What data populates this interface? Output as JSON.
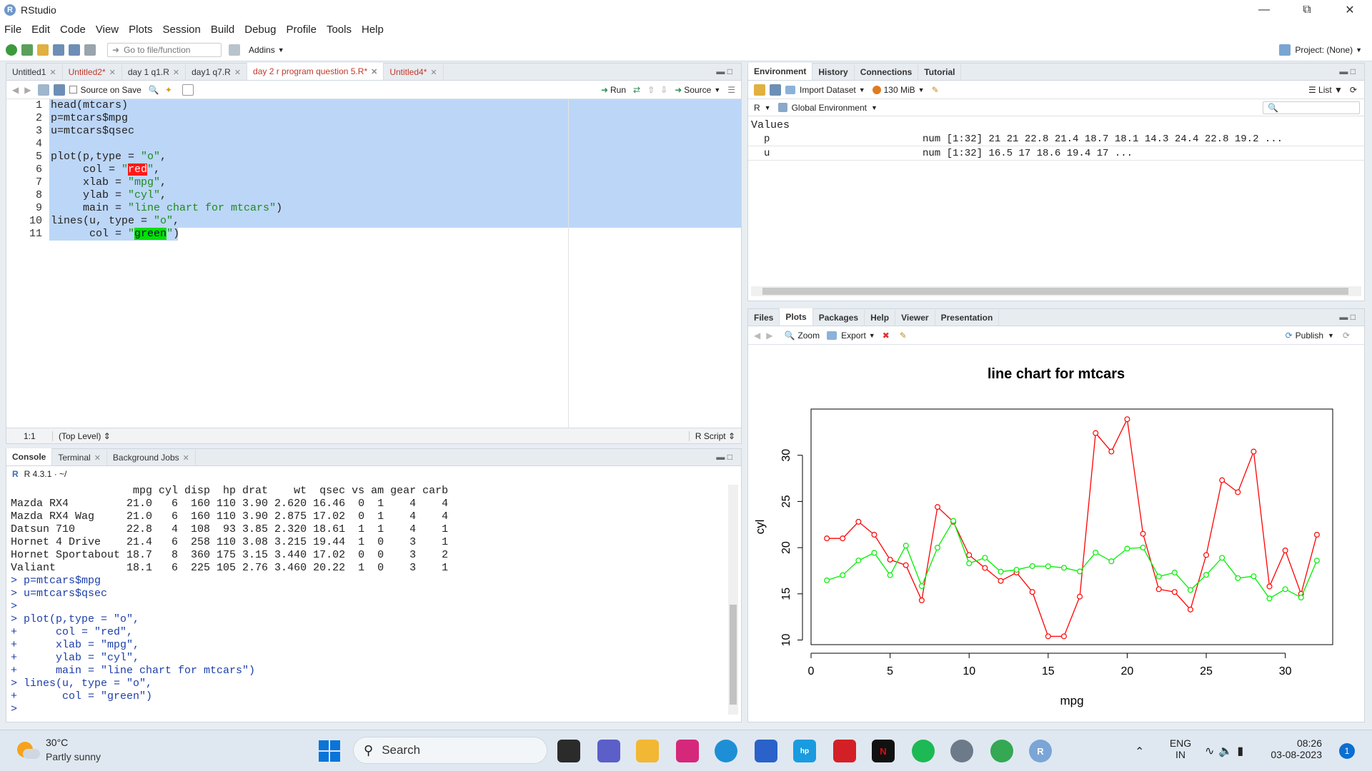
{
  "app": {
    "title": "RStudio"
  },
  "menu": [
    "File",
    "Edit",
    "Code",
    "View",
    "Plots",
    "Session",
    "Build",
    "Debug",
    "Profile",
    "Tools",
    "Help"
  ],
  "toolbar": {
    "goto_placeholder": "Go to file/function",
    "addins": "Addins",
    "project": "Project: (None)"
  },
  "editor": {
    "tabs": [
      {
        "label": "Untitled1",
        "dirty": false
      },
      {
        "label": "Untitled2*",
        "dirty": true
      },
      {
        "label": "day 1 q1.R",
        "dirty": false
      },
      {
        "label": "day1 q7.R",
        "dirty": false
      },
      {
        "label": "day 2 r program question 5.R*",
        "dirty": true,
        "active": true
      },
      {
        "label": "Untitled4*",
        "dirty": true
      }
    ],
    "source_on_save": "Source on Save",
    "run": "Run",
    "source": "Source",
    "lines": [
      "head(mtcars)",
      "p=mtcars$mpg",
      "u=mtcars$qsec",
      "",
      "plot(p,type = \"o\",",
      "     col = \"red\",",
      "     xlab = \"mpg\",",
      "     ylab = \"cyl\",",
      "     main = \"line chart for mtcars\")",
      "lines(u, type = \"o\",",
      "      col = \"green\")"
    ],
    "position": "1:1",
    "scope": "(Top Level)",
    "filetype": "R Script"
  },
  "console": {
    "tabs": [
      "Console",
      "Terminal",
      "Background Jobs"
    ],
    "version": "R 4.3.1 · ~/",
    "lines": [
      "                   mpg cyl disp  hp drat    wt  qsec vs am gear carb",
      "Mazda RX4         21.0   6  160 110 3.90 2.620 16.46  0  1    4    4",
      "Mazda RX4 Wag     21.0   6  160 110 3.90 2.875 17.02  0  1    4    4",
      "Datsun 710        22.8   4  108  93 3.85 2.320 18.61  1  1    4    1",
      "Hornet 4 Drive    21.4   6  258 110 3.08 3.215 19.44  1  0    3    1",
      "Hornet Sportabout 18.7   8  360 175 3.15 3.440 17.02  0  0    3    2",
      "Valiant           18.1   6  225 105 2.76 3.460 20.22  1  0    3    1",
      "> p=mtcars$mpg",
      "> u=mtcars$qsec",
      ">",
      "> plot(p,type = \"o\",",
      "+      col = \"red\",",
      "+      xlab = \"mpg\",",
      "+      ylab = \"cyl\",",
      "+      main = \"line chart for mtcars\")",
      "> lines(u, type = \"o\",",
      "+       col = \"green\")",
      "> "
    ]
  },
  "environment": {
    "tabs": [
      "Environment",
      "History",
      "Connections",
      "Tutorial"
    ],
    "import": "Import Dataset",
    "memory": "130 MiB",
    "list": "List",
    "lang": "R",
    "scope": "Global Environment",
    "section": "Values",
    "rows": [
      {
        "name": "p",
        "value": "num [1:32] 21 21 22.8 21.4 18.7 18.1 14.3 24.4 22.8 19.2 ..."
      },
      {
        "name": "u",
        "value": "num [1:32] 16.5 17 18.6 19.4 17 ..."
      }
    ]
  },
  "files": {
    "tabs": [
      "Files",
      "Plots",
      "Packages",
      "Help",
      "Viewer",
      "Presentation"
    ],
    "zoom": "Zoom",
    "export": "Export",
    "publish": "Publish"
  },
  "chart_data": {
    "type": "line",
    "title": "line chart for mtcars",
    "xlabel": "mpg",
    "ylabel": "cyl",
    "xlim": [
      0,
      33
    ],
    "ylim": [
      9.5,
      35
    ],
    "xticks": [
      0,
      5,
      10,
      15,
      20,
      25,
      30
    ],
    "yticks": [
      10,
      15,
      20,
      25,
      30
    ],
    "x": [
      1,
      2,
      3,
      4,
      5,
      6,
      7,
      8,
      9,
      10,
      11,
      12,
      13,
      14,
      15,
      16,
      17,
      18,
      19,
      20,
      21,
      22,
      23,
      24,
      25,
      26,
      27,
      28,
      29,
      30,
      31,
      32
    ],
    "series": [
      {
        "color": "#ff0000",
        "values": [
          21,
          21,
          22.8,
          21.4,
          18.7,
          18.1,
          14.3,
          24.4,
          22.8,
          19.2,
          17.8,
          16.4,
          17.3,
          15.2,
          10.4,
          10.4,
          14.7,
          32.4,
          30.4,
          33.9,
          21.5,
          15.5,
          15.2,
          13.3,
          19.2,
          27.3,
          26,
          30.4,
          15.8,
          19.7,
          15,
          21.4
        ]
      },
      {
        "color": "#00ee00",
        "values": [
          16.46,
          17.02,
          18.61,
          19.44,
          17.02,
          20.22,
          15.84,
          20,
          22.9,
          18.3,
          18.9,
          17.4,
          17.6,
          18,
          17.98,
          17.82,
          17.42,
          19.47,
          18.52,
          19.9,
          20.01,
          16.87,
          17.3,
          15.41,
          17.05,
          18.9,
          16.7,
          16.9,
          14.5,
          15.5,
          14.6,
          18.6
        ]
      }
    ]
  },
  "taskbar": {
    "weather_temp": "30°C",
    "weather_desc": "Partly sunny",
    "search": "Search",
    "lang1": "ENG",
    "lang2": "IN",
    "time": "08:26",
    "date": "03-08-2023",
    "notif": "1"
  }
}
